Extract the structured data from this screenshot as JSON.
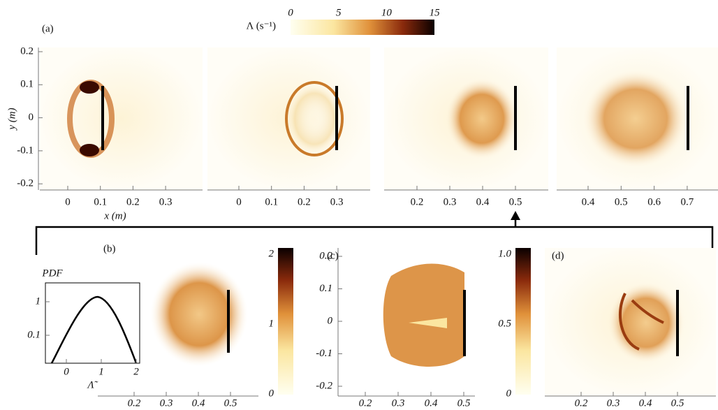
{
  "panel_a": {
    "label": "(a)",
    "colorbar_label": "Λ (s⁻¹)",
    "colorbar_ticks": [
      "0",
      "5",
      "10",
      "15"
    ],
    "y_label": "y (m)",
    "x_label": "x (m)",
    "y_ticks": [
      "0.2",
      "0.1",
      "0",
      "-0.1",
      "-0.2"
    ],
    "frames": [
      {
        "x_ticks": [
          "0",
          "0.1",
          "0.2",
          "0.3"
        ]
      },
      {
        "x_ticks": [
          "0",
          "0.1",
          "0.2",
          "0.3"
        ]
      },
      {
        "x_ticks": [
          "0.2",
          "0.3",
          "0.4",
          "0.5"
        ]
      },
      {
        "x_ticks": [
          "0.4",
          "0.5",
          "0.6",
          "0.7"
        ]
      }
    ]
  },
  "panel_b": {
    "label": "(b)",
    "pdf_label": "PDF",
    "pdf_y_ticks": [
      "1",
      "0.1"
    ],
    "pdf_x_ticks": [
      "0",
      "1",
      "2"
    ],
    "pdf_x_label": "Λ̃",
    "colorbar_ticks": [
      "2",
      "1",
      "0"
    ],
    "x_ticks": [
      "0.2",
      "0.3",
      "0.4",
      "0.5"
    ]
  },
  "panel_c": {
    "label": "(c)",
    "y_ticks": [
      "0.2",
      "0.1",
      "0",
      "-0.1",
      "-0.2"
    ],
    "colorbar_ticks": [
      "1.0",
      "0.5",
      "0"
    ],
    "x_ticks": [
      "0.2",
      "0.3",
      "0.4",
      "0.5"
    ]
  },
  "panel_d": {
    "label": "(d)",
    "x_ticks": [
      "0.2",
      "0.3",
      "0.4",
      "0.5"
    ]
  }
}
